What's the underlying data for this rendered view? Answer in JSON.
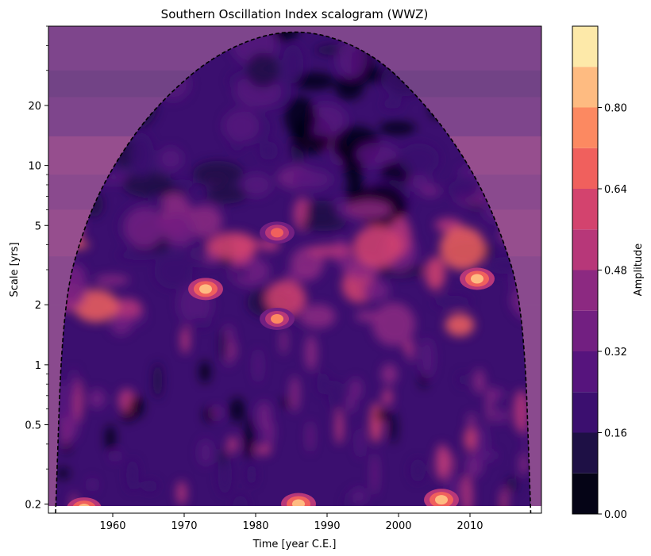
{
  "chart_data": {
    "type": "heatmap",
    "title": "Southern Oscillation Index scalogram (WWZ)",
    "xlabel": "Time [year C.E.]",
    "ylabel": "Scale [yrs]",
    "colorbar_label": "Amplitude",
    "colormap": "magma",
    "x_range": [
      1951,
      2020
    ],
    "y_range": [
      0.18,
      50
    ],
    "y_scale": "log",
    "x_ticks": [
      1960,
      1970,
      1980,
      1990,
      2000,
      2010
    ],
    "x_tick_labels": [
      "1960",
      "1970",
      "1980",
      "1990",
      "2000",
      "2010"
    ],
    "y_ticks": [
      0.2,
      0.5,
      1,
      2,
      5,
      10,
      20
    ],
    "y_tick_labels": [
      "0.2",
      "0.5",
      "1",
      "2",
      "5",
      "10",
      "20"
    ],
    "color_levels": [
      0.0,
      0.08,
      0.16,
      0.24,
      0.32,
      0.4,
      0.48,
      0.56,
      0.64,
      0.72,
      0.8,
      0.88
    ],
    "colorbar_ticks": [
      0.0,
      0.16,
      0.32,
      0.48,
      0.64,
      0.8
    ],
    "colorbar_tick_labels": [
      "0.00",
      "0.16",
      "0.32",
      "0.48",
      "0.64",
      "0.80"
    ],
    "colors": [
      "#050416",
      "#1e1045",
      "#3b0f6f",
      "#56147d",
      "#721f81",
      "#8c2981",
      "#b73779",
      "#d3436e",
      "#f0605d",
      "#fc8961",
      "#febb81",
      "#fde9a9"
    ],
    "cone_of_influence": {
      "style": "dashed",
      "points": [
        [
          1952,
          0.18
        ],
        [
          1953,
          2.0
        ],
        [
          1956,
          5
        ],
        [
          1960,
          10
        ],
        [
          1966,
          20
        ],
        [
          1975,
          38
        ],
        [
          1985.5,
          50
        ],
        [
          1996,
          38
        ],
        [
          2004,
          20
        ],
        [
          2010,
          10
        ],
        [
          2014,
          5
        ],
        [
          2017.5,
          2.0
        ],
        [
          2018.5,
          0.18
        ]
      ]
    },
    "hotspots": [
      {
        "x": 1956,
        "y": 0.19,
        "value": 0.85
      },
      {
        "x": 1973,
        "y": 2.4,
        "value": 0.84
      },
      {
        "x": 1983,
        "y": 1.7,
        "value": 0.72
      },
      {
        "x": 1986,
        "y": 0.2,
        "value": 0.86
      },
      {
        "x": 2006,
        "y": 0.21,
        "value": 0.86
      },
      {
        "x": 2011,
        "y": 2.7,
        "value": 0.87
      },
      {
        "x": 1983,
        "y": 4.6,
        "value": 0.7
      },
      {
        "x": 2013,
        "y": 11,
        "value": 0.52
      }
    ]
  }
}
